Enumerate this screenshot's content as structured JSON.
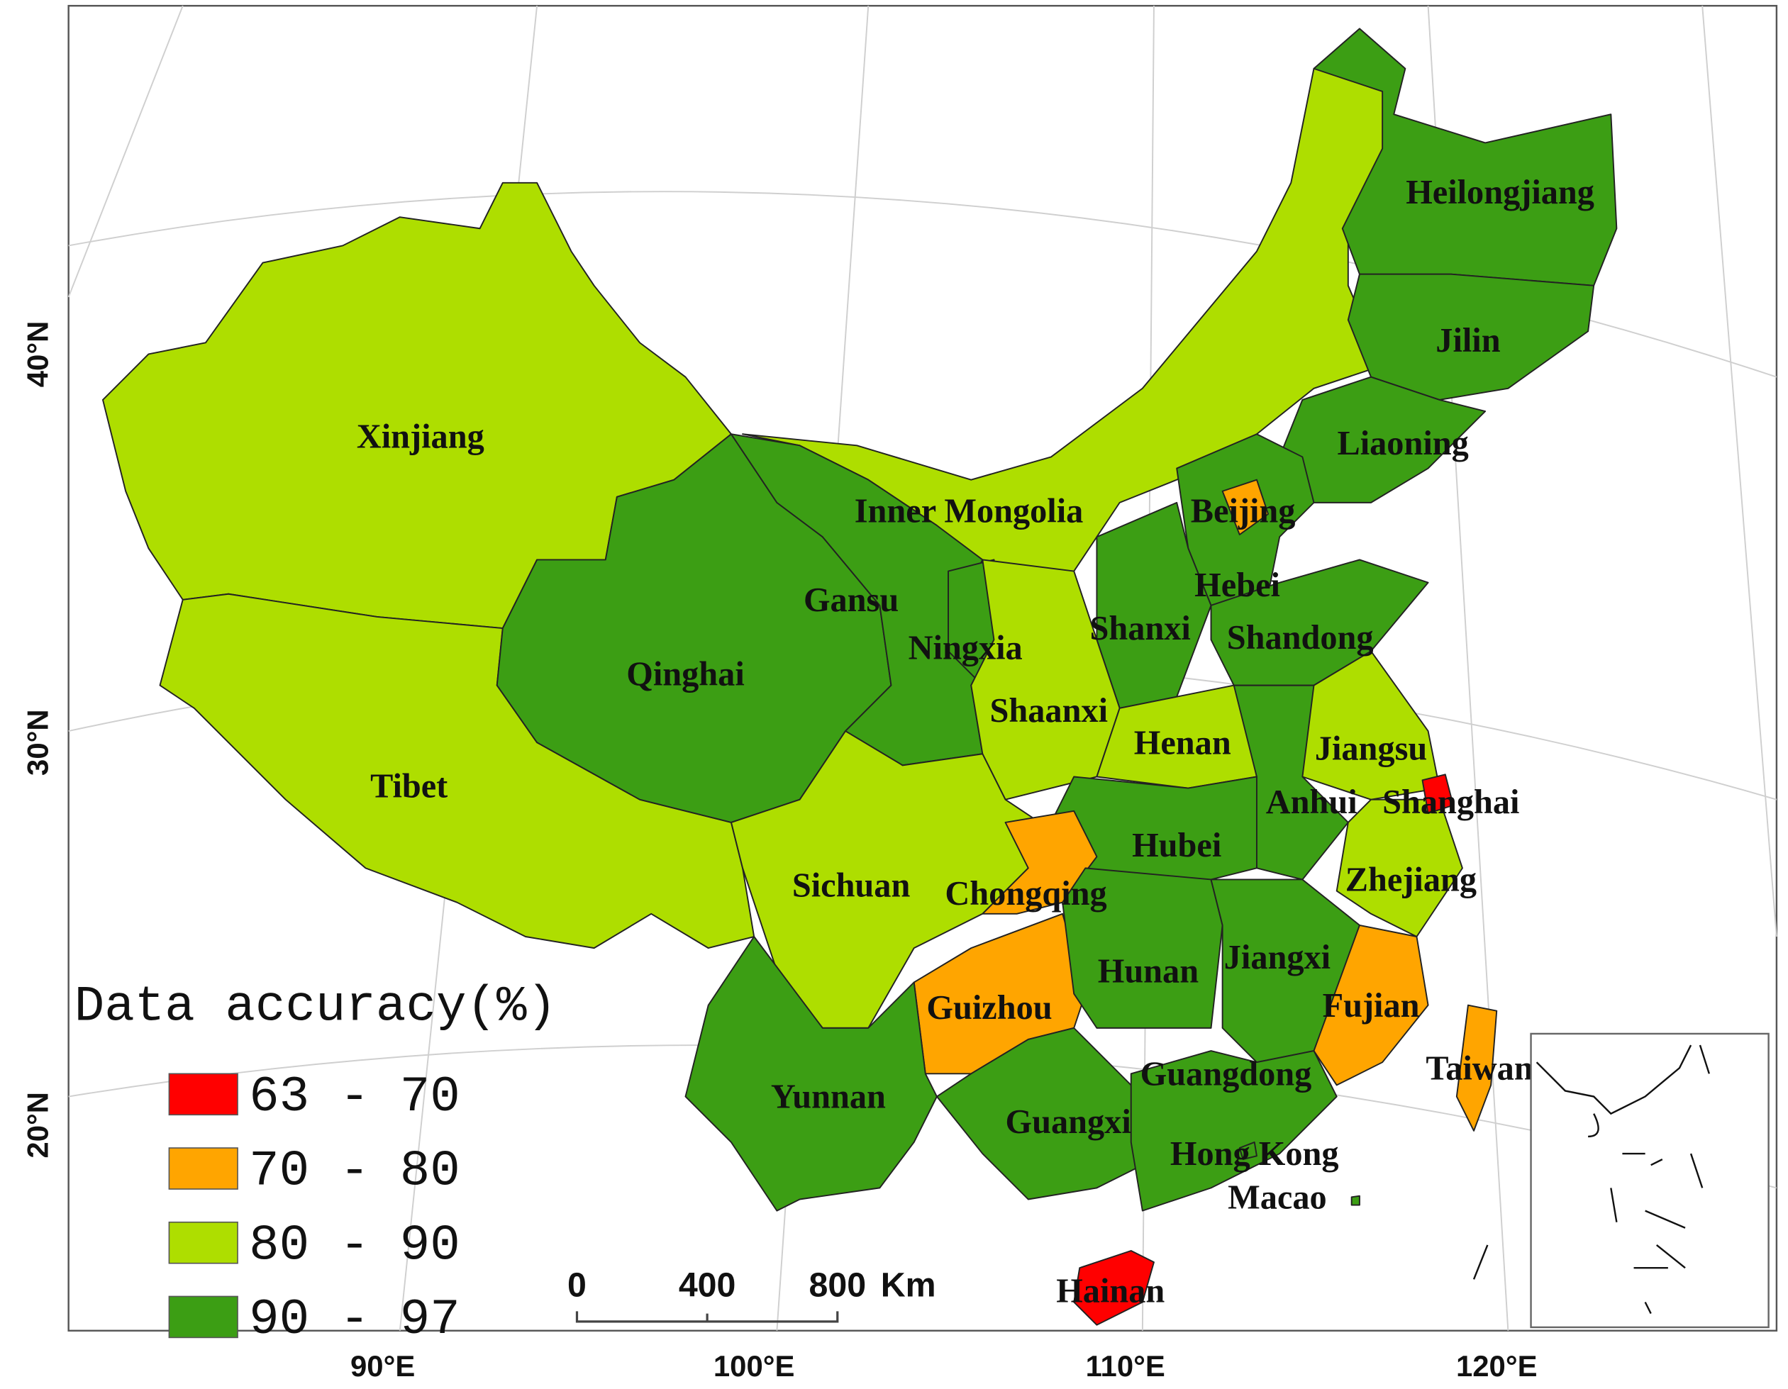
{
  "map": {
    "legend": {
      "title": "Data accuracy(%)",
      "classes": [
        {
          "label": "63 - 70",
          "color": "#ff0000"
        },
        {
          "label": "70 - 80",
          "color": "#ffa500"
        },
        {
          "label": "80 - 90",
          "color": "#aede00"
        },
        {
          "label": "90 - 97",
          "color": "#3c9e14"
        }
      ]
    },
    "regions": [
      {
        "name": "Xinjiang",
        "class": 2
      },
      {
        "name": "Tibet",
        "class": 2
      },
      {
        "name": "Inner Mongolia",
        "class": 2
      },
      {
        "name": "Qinghai",
        "class": 3
      },
      {
        "name": "Gansu",
        "class": 3
      },
      {
        "name": "Heilongjiang",
        "class": 3
      },
      {
        "name": "Jilin",
        "class": 3
      },
      {
        "name": "Liaoning",
        "class": 3
      },
      {
        "name": "Hebei",
        "class": 3
      },
      {
        "name": "Beijing",
        "class": 1
      },
      {
        "name": "Shanxi",
        "class": 3
      },
      {
        "name": "Shandong",
        "class": 3
      },
      {
        "name": "Ningxia",
        "class": 3
      },
      {
        "name": "Shaanxi",
        "class": 2
      },
      {
        "name": "Henan",
        "class": 2
      },
      {
        "name": "Jiangsu",
        "class": 2
      },
      {
        "name": "Anhui",
        "class": 3
      },
      {
        "name": "Zhejiang",
        "class": 2
      },
      {
        "name": "Shanghai",
        "class": 0
      },
      {
        "name": "Hubei",
        "class": 3
      },
      {
        "name": "Sichuan",
        "class": 2
      },
      {
        "name": "Chongqing",
        "class": 1
      },
      {
        "name": "Guizhou",
        "class": 1
      },
      {
        "name": "Hunan",
        "class": 3
      },
      {
        "name": "Jiangxi",
        "class": 3
      },
      {
        "name": "Fujian",
        "class": 1
      },
      {
        "name": "Yunnan",
        "class": 3
      },
      {
        "name": "Guangxi",
        "class": 3
      },
      {
        "name": "Guangdong",
        "class": 3
      },
      {
        "name": "Hong Kong",
        "class": 3
      },
      {
        "name": "Macao",
        "class": 3
      },
      {
        "name": "Hainan",
        "class": 0
      },
      {
        "name": "Taiwan",
        "class": 1
      }
    ],
    "lat_labels": [
      "40°N",
      "30°N",
      "20°N"
    ],
    "lon_labels": [
      "90°E",
      "100°E",
      "110°E",
      "120°E"
    ],
    "scale_bar": {
      "ticks": [
        "0",
        "400",
        "800"
      ],
      "unit": "Km"
    }
  }
}
